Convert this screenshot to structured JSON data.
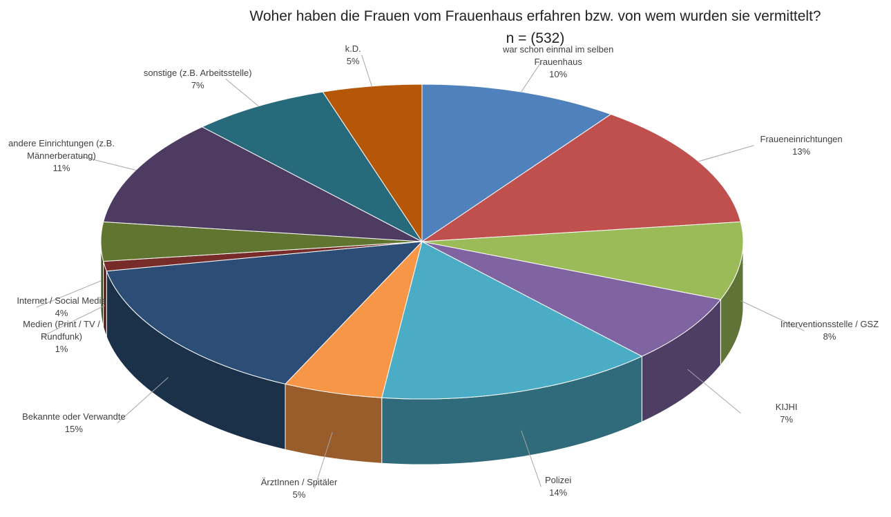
{
  "chart_data": {
    "type": "pie",
    "title": "Woher haben die Frauen vom Frauenhaus erfahren bzw. von wem wurden sie vermittelt?",
    "subtitle": "n = (532)",
    "categories": [
      "war schon einmal im selben Frauenhaus",
      "Fraueneinrichtungen",
      "Interventionsstelle / GSZ",
      "KIJHI",
      "Polizei",
      "ÄrztInnen / Spitäler",
      "Bekannte oder Verwandte",
      "Medien (Print / TV / Rundfunk)",
      "Internet / Social Media",
      "andere Einrichtungen (z.B. Männerberatung)",
      "sonstige (z.B. Arbeitsstelle)",
      "k.D."
    ],
    "values": [
      10,
      13,
      8,
      7,
      14,
      5,
      15,
      1,
      4,
      11,
      7,
      5
    ],
    "value_labels": [
      "10%",
      "13%",
      "8%",
      "7%",
      "14%",
      "5%",
      "15%",
      "1%",
      "4%",
      "11%",
      "7%",
      "5%"
    ],
    "colors": [
      "#4f81bd",
      "#c0504d",
      "#9bbb59",
      "#8064a2",
      "#4bacc6",
      "#f79646",
      "#2c4d75",
      "#772c2a",
      "#5f7530",
      "#4d3b62",
      "#276a7c",
      "#b65708"
    ]
  }
}
